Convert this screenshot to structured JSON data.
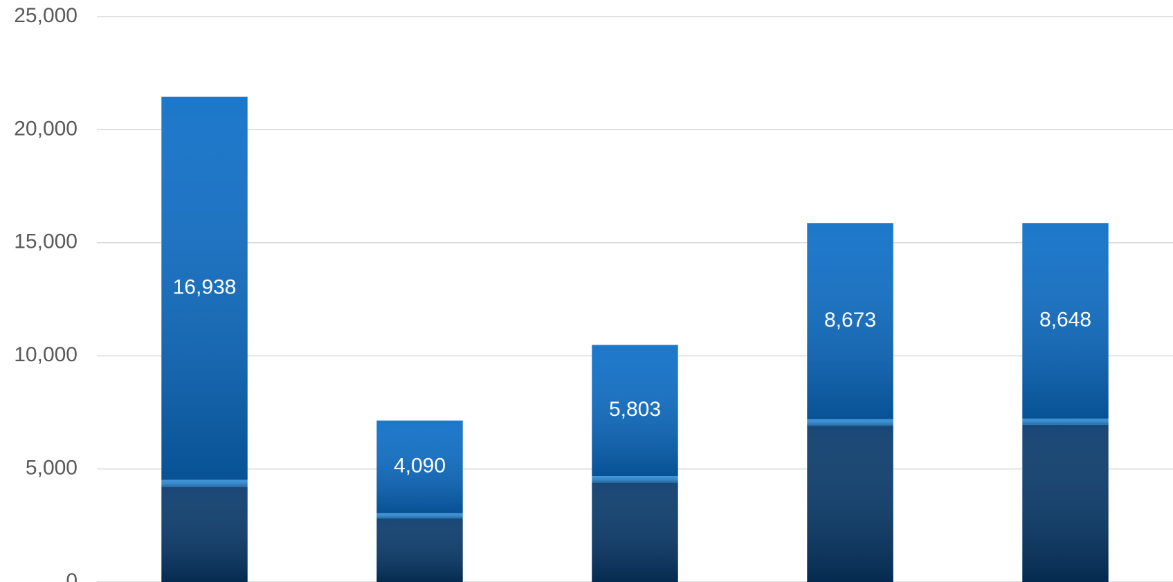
{
  "chart_data": {
    "type": "stacked-bar",
    "categories": [
      null,
      null,
      null,
      null,
      null
    ],
    "series": [
      {
        "color": "#06386a",
        "values": [
          4200,
          2800,
          4400,
          6900,
          6950
        ]
      },
      {
        "color": "#2b8ad6",
        "values": [
          320,
          250,
          280,
          300,
          275
        ]
      },
      {
        "color": "#0a6cc6",
        "values": [
          16938,
          4090,
          5803,
          8673,
          8648
        ],
        "value_labels": [
          "16,938",
          "4,090",
          "5,803",
          "8,673",
          "8,648"
        ]
      }
    ],
    "ylim": [
      0,
      25000
    ],
    "yticks": [
      {
        "value": 0,
        "label": "0"
      },
      {
        "value": 5000,
        "label": "5,000"
      },
      {
        "value": 10000,
        "label": "10,000"
      },
      {
        "value": 15000,
        "label": "15,000"
      },
      {
        "value": 20000,
        "label": "20,000"
      },
      {
        "value": 25000,
        "label": "25,000"
      }
    ],
    "grid": true
  }
}
